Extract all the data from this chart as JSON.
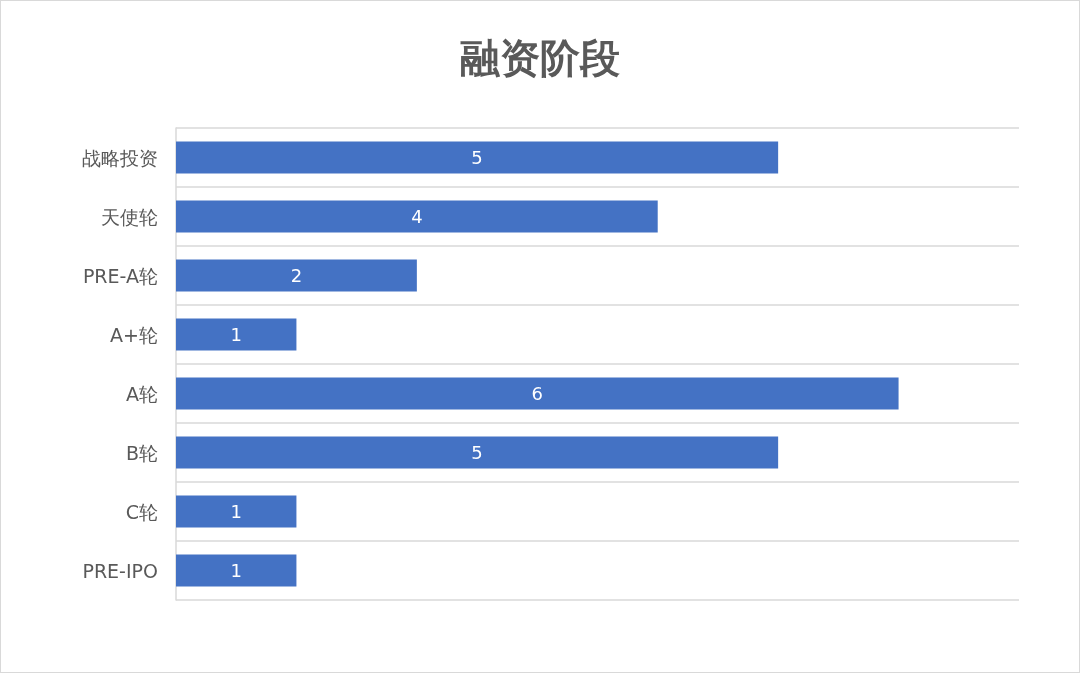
{
  "chart_data": {
    "type": "bar",
    "title": "融资阶段",
    "orientation": "horizontal",
    "categories": [
      "战略投资",
      "天使轮",
      "PRE-A轮",
      "A+轮",
      "A轮",
      "B轮",
      "C轮",
      "PRE-IPO"
    ],
    "values": [
      5,
      4,
      2,
      1,
      6,
      5,
      1,
      1
    ],
    "color": "#4472c4",
    "xlim": [
      0,
      7
    ],
    "tick_labels": "y",
    "grid": "y",
    "data_labels": true
  }
}
